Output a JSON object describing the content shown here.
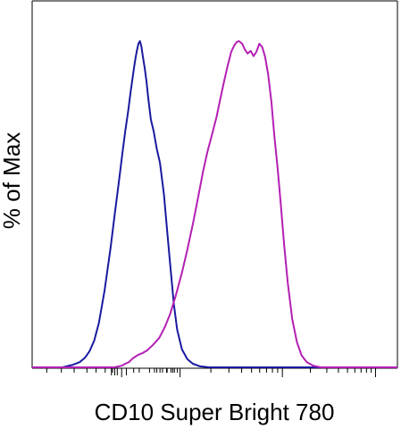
{
  "chart_data": {
    "type": "line",
    "xlabel": "CD10 Super Bright 780",
    "ylabel": "% of Max",
    "xscale": "logicle",
    "xlim": [
      0,
      1
    ],
    "ylim": [
      0,
      100
    ],
    "grid": false,
    "legend": "none",
    "series": [
      {
        "color": "#1a1aa0",
        "x": [
          0.0,
          0.083,
          0.112,
          0.13,
          0.145,
          0.157,
          0.17,
          0.183,
          0.198,
          0.215,
          0.226,
          0.238,
          0.247,
          0.255,
          0.263,
          0.27,
          0.276,
          0.281,
          0.286,
          0.291,
          0.295,
          0.299,
          0.303,
          0.308,
          0.313,
          0.318,
          0.325,
          0.333,
          0.341,
          0.35,
          0.361,
          0.37,
          0.379,
          0.388,
          0.397,
          0.41,
          0.425,
          0.44,
          0.46,
          0.485,
          0.53,
          1.0
        ],
        "y": [
          0.0,
          0.0,
          0.8,
          1.6,
          3.0,
          4.9,
          8.2,
          13.7,
          23.4,
          36.8,
          46.8,
          57.3,
          65.5,
          72.5,
          78.7,
          84.7,
          89.6,
          93.4,
          96.7,
          99.2,
          100.0,
          98.4,
          95.4,
          91.8,
          87.7,
          82.3,
          76.0,
          72.2,
          67.0,
          62.7,
          52.9,
          41.4,
          30.2,
          19.3,
          11.5,
          5.5,
          2.5,
          1.1,
          0.3,
          0.0,
          0.0,
          0.0
        ]
      },
      {
        "color": "#b41fb4",
        "x": [
          0.0,
          0.225,
          0.245,
          0.255,
          0.265,
          0.275,
          0.283,
          0.29,
          0.303,
          0.315,
          0.33,
          0.348,
          0.363,
          0.378,
          0.393,
          0.41,
          0.425,
          0.44,
          0.455,
          0.468,
          0.48,
          0.493,
          0.505,
          0.515,
          0.525,
          0.535,
          0.545,
          0.553,
          0.56,
          0.566,
          0.575,
          0.582,
          0.59,
          0.598,
          0.606,
          0.614,
          0.622,
          0.63,
          0.638,
          0.646,
          0.655,
          0.663,
          0.672,
          0.681,
          0.69,
          0.7,
          0.712,
          0.725,
          0.738,
          0.752,
          0.77,
          0.79,
          1.0
        ],
        "y": [
          0.0,
          0.0,
          0.5,
          1.1,
          1.6,
          2.7,
          3.3,
          3.8,
          4.4,
          5.2,
          6.8,
          9.0,
          12.3,
          16.4,
          21.9,
          29.0,
          36.1,
          44.0,
          52.5,
          60.1,
          66.1,
          71.6,
          76.8,
          82.2,
          87.4,
          92.3,
          96.7,
          98.6,
          99.7,
          100.0,
          99.2,
          97.5,
          96.2,
          97.0,
          95.4,
          96.7,
          99.2,
          98.1,
          95.1,
          89.9,
          81.4,
          71.0,
          61.2,
          49.7,
          37.4,
          25.7,
          14.8,
          7.7,
          3.6,
          1.6,
          0.5,
          0.0,
          0.0
        ]
      }
    ]
  }
}
